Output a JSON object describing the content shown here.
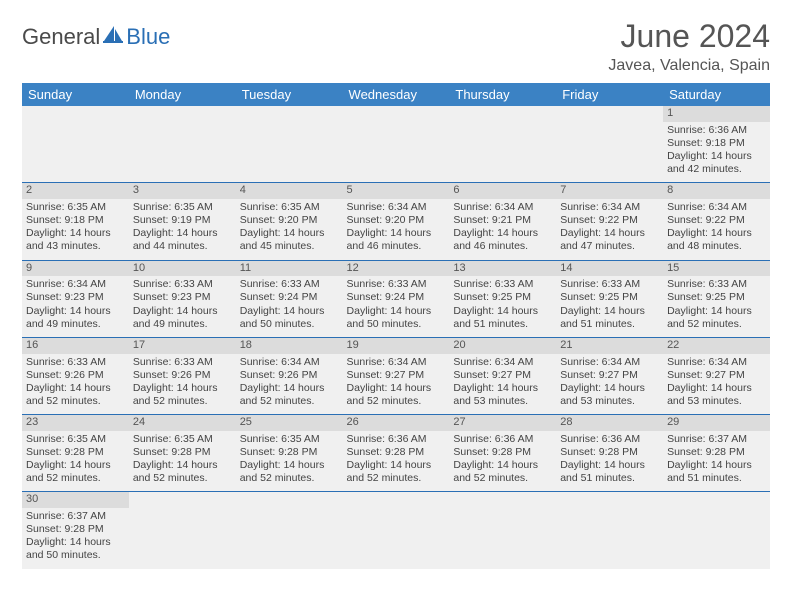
{
  "brand": {
    "part1": "General",
    "part2": "Blue"
  },
  "title": "June 2024",
  "location": "Javea, Valencia, Spain",
  "colors": {
    "header_bg": "#3b82c4",
    "border": "#2a6fb5",
    "daynum_bg": "#dcdcdc",
    "logo_accent": "#2a6fb5"
  },
  "weekdays": [
    "Sunday",
    "Monday",
    "Tuesday",
    "Wednesday",
    "Thursday",
    "Friday",
    "Saturday"
  ],
  "weeks": [
    [
      null,
      null,
      null,
      null,
      null,
      null,
      {
        "n": "1",
        "sr": "Sunrise: 6:36 AM",
        "ss": "Sunset: 9:18 PM",
        "d1": "Daylight: 14 hours",
        "d2": "and 42 minutes."
      }
    ],
    [
      {
        "n": "2",
        "sr": "Sunrise: 6:35 AM",
        "ss": "Sunset: 9:18 PM",
        "d1": "Daylight: 14 hours",
        "d2": "and 43 minutes."
      },
      {
        "n": "3",
        "sr": "Sunrise: 6:35 AM",
        "ss": "Sunset: 9:19 PM",
        "d1": "Daylight: 14 hours",
        "d2": "and 44 minutes."
      },
      {
        "n": "4",
        "sr": "Sunrise: 6:35 AM",
        "ss": "Sunset: 9:20 PM",
        "d1": "Daylight: 14 hours",
        "d2": "and 45 minutes."
      },
      {
        "n": "5",
        "sr": "Sunrise: 6:34 AM",
        "ss": "Sunset: 9:20 PM",
        "d1": "Daylight: 14 hours",
        "d2": "and 46 minutes."
      },
      {
        "n": "6",
        "sr": "Sunrise: 6:34 AM",
        "ss": "Sunset: 9:21 PM",
        "d1": "Daylight: 14 hours",
        "d2": "and 46 minutes."
      },
      {
        "n": "7",
        "sr": "Sunrise: 6:34 AM",
        "ss": "Sunset: 9:22 PM",
        "d1": "Daylight: 14 hours",
        "d2": "and 47 minutes."
      },
      {
        "n": "8",
        "sr": "Sunrise: 6:34 AM",
        "ss": "Sunset: 9:22 PM",
        "d1": "Daylight: 14 hours",
        "d2": "and 48 minutes."
      }
    ],
    [
      {
        "n": "9",
        "sr": "Sunrise: 6:34 AM",
        "ss": "Sunset: 9:23 PM",
        "d1": "Daylight: 14 hours",
        "d2": "and 49 minutes."
      },
      {
        "n": "10",
        "sr": "Sunrise: 6:33 AM",
        "ss": "Sunset: 9:23 PM",
        "d1": "Daylight: 14 hours",
        "d2": "and 49 minutes."
      },
      {
        "n": "11",
        "sr": "Sunrise: 6:33 AM",
        "ss": "Sunset: 9:24 PM",
        "d1": "Daylight: 14 hours",
        "d2": "and 50 minutes."
      },
      {
        "n": "12",
        "sr": "Sunrise: 6:33 AM",
        "ss": "Sunset: 9:24 PM",
        "d1": "Daylight: 14 hours",
        "d2": "and 50 minutes."
      },
      {
        "n": "13",
        "sr": "Sunrise: 6:33 AM",
        "ss": "Sunset: 9:25 PM",
        "d1": "Daylight: 14 hours",
        "d2": "and 51 minutes."
      },
      {
        "n": "14",
        "sr": "Sunrise: 6:33 AM",
        "ss": "Sunset: 9:25 PM",
        "d1": "Daylight: 14 hours",
        "d2": "and 51 minutes."
      },
      {
        "n": "15",
        "sr": "Sunrise: 6:33 AM",
        "ss": "Sunset: 9:25 PM",
        "d1": "Daylight: 14 hours",
        "d2": "and 52 minutes."
      }
    ],
    [
      {
        "n": "16",
        "sr": "Sunrise: 6:33 AM",
        "ss": "Sunset: 9:26 PM",
        "d1": "Daylight: 14 hours",
        "d2": "and 52 minutes."
      },
      {
        "n": "17",
        "sr": "Sunrise: 6:33 AM",
        "ss": "Sunset: 9:26 PM",
        "d1": "Daylight: 14 hours",
        "d2": "and 52 minutes."
      },
      {
        "n": "18",
        "sr": "Sunrise: 6:34 AM",
        "ss": "Sunset: 9:26 PM",
        "d1": "Daylight: 14 hours",
        "d2": "and 52 minutes."
      },
      {
        "n": "19",
        "sr": "Sunrise: 6:34 AM",
        "ss": "Sunset: 9:27 PM",
        "d1": "Daylight: 14 hours",
        "d2": "and 52 minutes."
      },
      {
        "n": "20",
        "sr": "Sunrise: 6:34 AM",
        "ss": "Sunset: 9:27 PM",
        "d1": "Daylight: 14 hours",
        "d2": "and 53 minutes."
      },
      {
        "n": "21",
        "sr": "Sunrise: 6:34 AM",
        "ss": "Sunset: 9:27 PM",
        "d1": "Daylight: 14 hours",
        "d2": "and 53 minutes."
      },
      {
        "n": "22",
        "sr": "Sunrise: 6:34 AM",
        "ss": "Sunset: 9:27 PM",
        "d1": "Daylight: 14 hours",
        "d2": "and 53 minutes."
      }
    ],
    [
      {
        "n": "23",
        "sr": "Sunrise: 6:35 AM",
        "ss": "Sunset: 9:28 PM",
        "d1": "Daylight: 14 hours",
        "d2": "and 52 minutes."
      },
      {
        "n": "24",
        "sr": "Sunrise: 6:35 AM",
        "ss": "Sunset: 9:28 PM",
        "d1": "Daylight: 14 hours",
        "d2": "and 52 minutes."
      },
      {
        "n": "25",
        "sr": "Sunrise: 6:35 AM",
        "ss": "Sunset: 9:28 PM",
        "d1": "Daylight: 14 hours",
        "d2": "and 52 minutes."
      },
      {
        "n": "26",
        "sr": "Sunrise: 6:36 AM",
        "ss": "Sunset: 9:28 PM",
        "d1": "Daylight: 14 hours",
        "d2": "and 52 minutes."
      },
      {
        "n": "27",
        "sr": "Sunrise: 6:36 AM",
        "ss": "Sunset: 9:28 PM",
        "d1": "Daylight: 14 hours",
        "d2": "and 52 minutes."
      },
      {
        "n": "28",
        "sr": "Sunrise: 6:36 AM",
        "ss": "Sunset: 9:28 PM",
        "d1": "Daylight: 14 hours",
        "d2": "and 51 minutes."
      },
      {
        "n": "29",
        "sr": "Sunrise: 6:37 AM",
        "ss": "Sunset: 9:28 PM",
        "d1": "Daylight: 14 hours",
        "d2": "and 51 minutes."
      }
    ],
    [
      {
        "n": "30",
        "sr": "Sunrise: 6:37 AM",
        "ss": "Sunset: 9:28 PM",
        "d1": "Daylight: 14 hours",
        "d2": "and 50 minutes."
      },
      null,
      null,
      null,
      null,
      null,
      null
    ]
  ]
}
